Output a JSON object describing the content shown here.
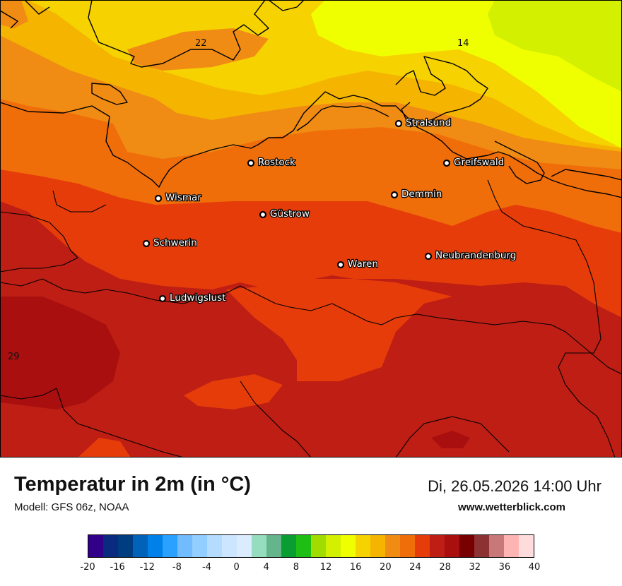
{
  "title": "Temperatur in 2m (in °C)",
  "model": "Modell: GFS 06z, NOAA",
  "datetime": "Di, 26.05.2026 14:00 Uhr",
  "website": "www.wetterblick.com",
  "cities": [
    {
      "name": "Stralsund"
    },
    {
      "name": "Rostock"
    },
    {
      "name": "Greifswald"
    },
    {
      "name": "Demmin"
    },
    {
      "name": "Wismar"
    },
    {
      "name": "Güstrow"
    },
    {
      "name": "Schwerin"
    },
    {
      "name": "Neubrandenburg"
    },
    {
      "name": "Waren"
    },
    {
      "name": "Ludwigslust"
    }
  ],
  "isolabels": [
    "22",
    "14",
    "29"
  ],
  "legend": {
    "colors": [
      "#320088",
      "#0a2a80",
      "#003c80",
      "#0062b8",
      "#0080e8",
      "#2aa0ff",
      "#70bcff",
      "#92ceff",
      "#b4dcff",
      "#cce6ff",
      "#dcecff",
      "#96dcbe",
      "#64b48c",
      "#0a9e32",
      "#1ebe14",
      "#a0dc00",
      "#d2f000",
      "#f0ff00",
      "#f5d200",
      "#f5b400",
      "#f08c14",
      "#f06e0a",
      "#e63c0a",
      "#be1e14",
      "#aa0f0f",
      "#780000",
      "#8c3232",
      "#c87878",
      "#ffb4b4",
      "#ffdcdc"
    ],
    "ticks": [
      "-20",
      "-16",
      "-12",
      "-8",
      "-4",
      "0",
      "4",
      "8",
      "12",
      "16",
      "20",
      "24",
      "28",
      "32",
      "36",
      "40"
    ]
  }
}
